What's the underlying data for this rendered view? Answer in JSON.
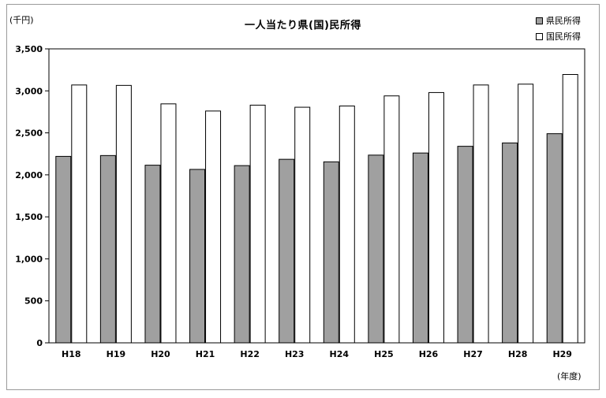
{
  "chart_data": {
    "type": "bar",
    "title": "一人当たり県(国)民所得",
    "ylabel": "(千円)",
    "xlabel": "(年度)",
    "categories": [
      "H18",
      "H19",
      "H20",
      "H21",
      "H22",
      "H23",
      "H24",
      "H25",
      "H26",
      "H27",
      "H28",
      "H29"
    ],
    "series": [
      {
        "name": "県民所得",
        "color": "#a0a0a0",
        "values": [
          2220,
          2230,
          2115,
          2065,
          2110,
          2185,
          2155,
          2235,
          2260,
          2340,
          2380,
          2490
        ]
      },
      {
        "name": "国民所得",
        "color": "#ffffff",
        "values": [
          3070,
          3065,
          2845,
          2760,
          2830,
          2805,
          2820,
          2940,
          2980,
          3070,
          3080,
          3195
        ]
      }
    ],
    "ylim": [
      0,
      3500
    ],
    "yticks": [
      0,
      500,
      1000,
      1500,
      2000,
      2500,
      3000,
      3500
    ],
    "ytick_labels": [
      "0",
      "500",
      "1,000",
      "1,500",
      "2,000",
      "2,500",
      "3,000",
      "3,500"
    ],
    "grid": false,
    "legend_position": "top-right"
  }
}
